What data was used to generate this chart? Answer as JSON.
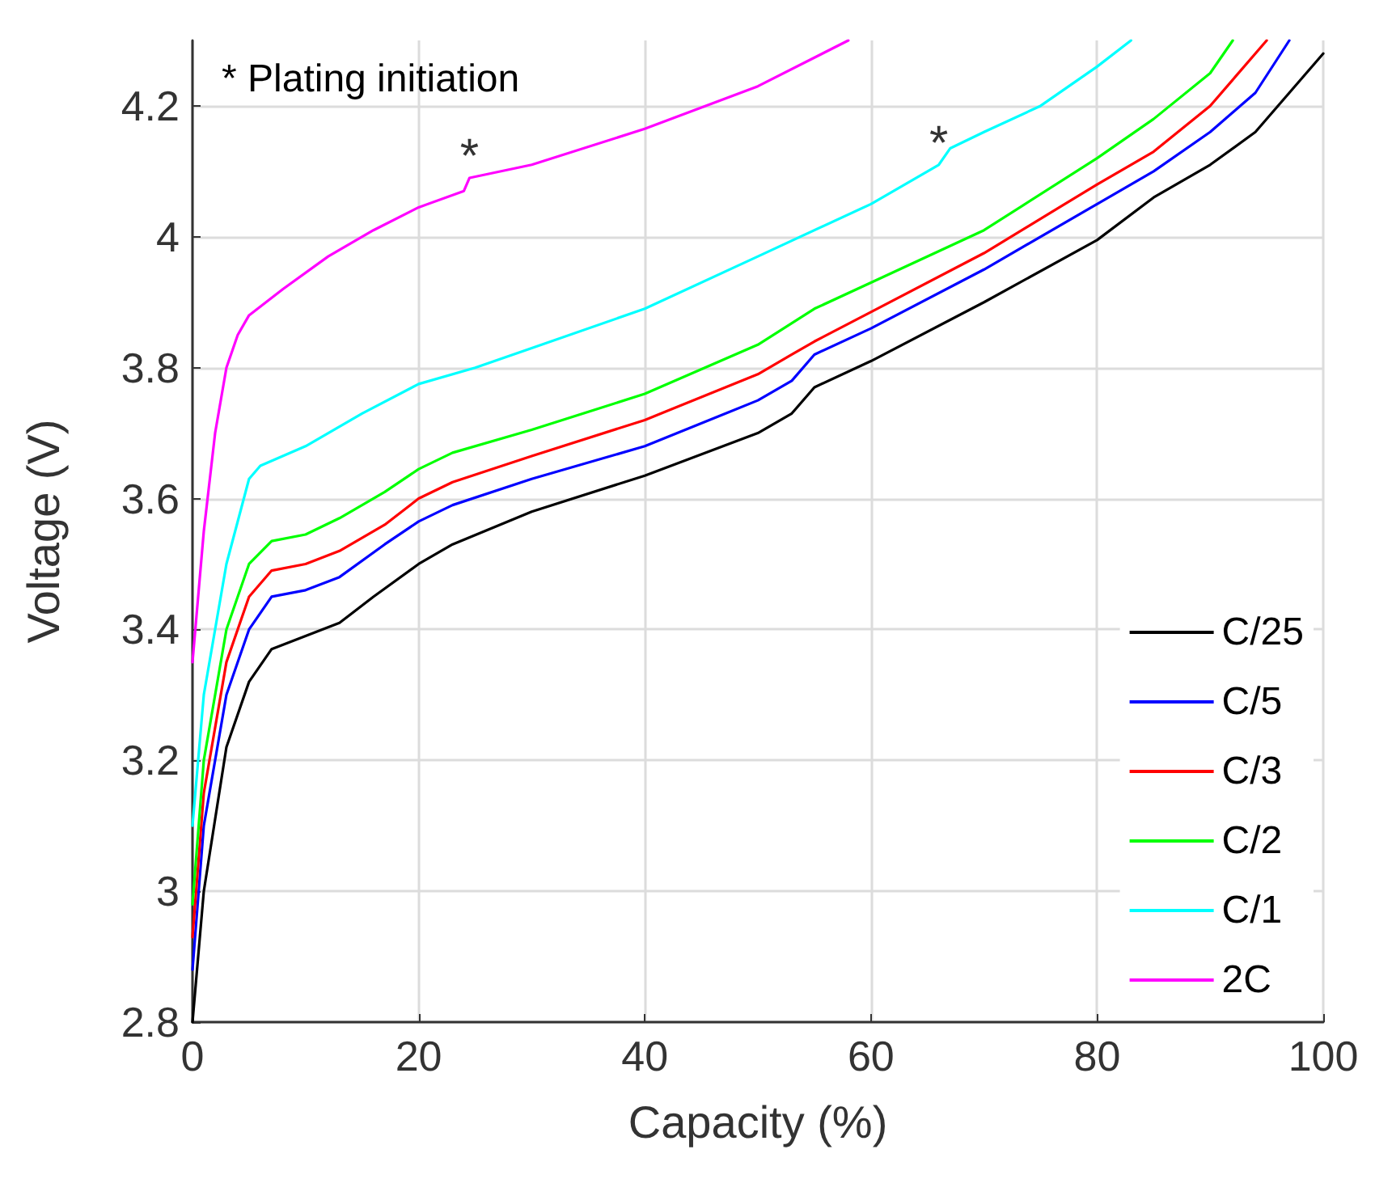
{
  "chart_data": {
    "type": "line",
    "xlabel": "Capacity (%)",
    "ylabel": "Voltage (V)",
    "xlim": [
      0,
      100
    ],
    "xticks": [
      0,
      20,
      40,
      60,
      80,
      100
    ],
    "ylim": [
      2.8,
      4.3
    ],
    "yticks": [
      2.8,
      3,
      3.2,
      3.4,
      3.6,
      3.8,
      4,
      4.2
    ],
    "grid": true,
    "legend": "bottom right",
    "marker": "none",
    "line_style": "solid",
    "annotations": [
      "* Plating initiation",
      {
        "text": "*",
        "x": 24.5,
        "y": 4.09
      },
      {
        "text": "*",
        "x": 66,
        "y": 4.11
      }
    ],
    "series": [
      {
        "name": "C/25",
        "color": "#000000",
        "x": [
          0,
          1,
          3,
          5,
          7,
          10,
          13,
          16,
          20,
          23,
          30,
          40,
          50,
          53,
          55,
          60,
          70,
          80,
          85,
          90,
          94,
          97,
          100
        ],
        "values": [
          2.8,
          3.0,
          3.22,
          3.32,
          3.37,
          3.39,
          3.41,
          3.45,
          3.5,
          3.53,
          3.58,
          3.635,
          3.7,
          3.73,
          3.77,
          3.81,
          3.9,
          3.995,
          4.06,
          4.11,
          4.16,
          4.22,
          4.28
        ]
      },
      {
        "name": "C/5",
        "color": "#0000ff",
        "x": [
          0,
          1,
          3,
          5,
          7,
          10,
          13,
          17,
          20,
          23,
          30,
          40,
          50,
          53,
          55,
          60,
          70,
          80,
          85,
          90,
          94,
          97
        ],
        "values": [
          2.88,
          3.1,
          3.3,
          3.4,
          3.45,
          3.46,
          3.48,
          3.53,
          3.565,
          3.59,
          3.63,
          3.68,
          3.75,
          3.78,
          3.82,
          3.86,
          3.95,
          4.05,
          4.1,
          4.16,
          4.22,
          4.3
        ]
      },
      {
        "name": "C/3",
        "color": "#ff0000",
        "x": [
          0,
          1,
          3,
          5,
          7,
          10,
          13,
          17,
          20,
          23,
          30,
          40,
          50,
          53,
          55,
          60,
          70,
          80,
          85,
          90,
          95
        ],
        "values": [
          2.93,
          3.15,
          3.35,
          3.45,
          3.49,
          3.5,
          3.52,
          3.56,
          3.6,
          3.625,
          3.665,
          3.72,
          3.79,
          3.82,
          3.84,
          3.885,
          3.975,
          4.08,
          4.13,
          4.2,
          4.3
        ]
      },
      {
        "name": "C/2",
        "color": "#00ff00",
        "x": [
          0,
          1,
          3,
          5,
          7,
          10,
          13,
          17,
          20,
          23,
          30,
          40,
          50,
          55,
          60,
          70,
          80,
          85,
          90,
          92
        ],
        "values": [
          2.98,
          3.2,
          3.4,
          3.5,
          3.535,
          3.545,
          3.57,
          3.61,
          3.645,
          3.67,
          3.705,
          3.76,
          3.835,
          3.89,
          3.93,
          4.01,
          4.12,
          4.18,
          4.25,
          4.3
        ]
      },
      {
        "name": "C/1",
        "color": "#00ffff",
        "x": [
          0,
          1,
          3,
          5,
          6,
          10,
          15,
          20,
          25,
          30,
          40,
          50,
          60,
          66,
          67,
          70,
          75,
          80,
          83
        ],
        "values": [
          3.1,
          3.3,
          3.5,
          3.63,
          3.65,
          3.68,
          3.73,
          3.775,
          3.8,
          3.83,
          3.89,
          3.97,
          4.05,
          4.11,
          4.135,
          4.16,
          4.2,
          4.26,
          4.3
        ]
      },
      {
        "name": "2C",
        "color": "#ff00ff",
        "x": [
          0,
          1,
          2,
          3,
          4,
          5,
          8,
          12,
          16,
          20,
          24,
          24.5,
          30,
          40,
          50,
          58
        ],
        "values": [
          3.35,
          3.55,
          3.7,
          3.8,
          3.85,
          3.88,
          3.92,
          3.97,
          4.01,
          4.045,
          4.07,
          4.09,
          4.11,
          4.165,
          4.23,
          4.3
        ]
      }
    ]
  }
}
